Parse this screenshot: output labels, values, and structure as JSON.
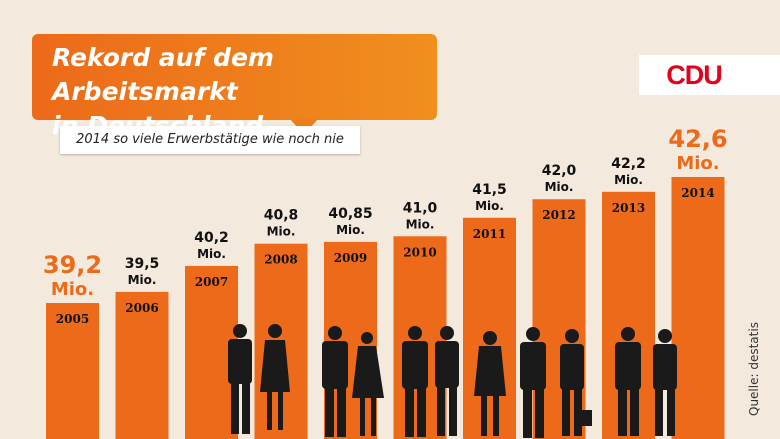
{
  "header": {
    "title": "Rekord auf dem Arbeitsmarkt\nin Deutschland",
    "subtitle": "2014 so viele Erwerbstätige wie noch nie"
  },
  "logo": {
    "text": "CDU"
  },
  "source": "Quelle: destatis",
  "colors": {
    "accent": "#ec6a1a",
    "logo_red": "#e2001a",
    "background": "#f4e9dd"
  },
  "chart_data": {
    "type": "bar",
    "title": "Rekord auf dem Arbeitsmarkt in Deutschland",
    "subtitle": "2014 so viele Erwerbstätige wie noch nie",
    "categories": [
      "2005",
      "2006",
      "2007",
      "2008",
      "2009",
      "2010",
      "2011",
      "2012",
      "2013",
      "2014"
    ],
    "values": [
      39.2,
      39.5,
      40.2,
      40.8,
      40.85,
      41.0,
      41.5,
      42.0,
      42.2,
      42.6
    ],
    "value_labels": [
      "39,2",
      "39,5",
      "40,2",
      "40,8",
      "40,85",
      "41,0",
      "41,5",
      "42,0",
      "42,2",
      "42,6"
    ],
    "unit": "Mio.",
    "highlighted": [
      "2005",
      "2014"
    ],
    "xlabel": "",
    "ylabel": "",
    "grid": false,
    "legend": "none"
  }
}
